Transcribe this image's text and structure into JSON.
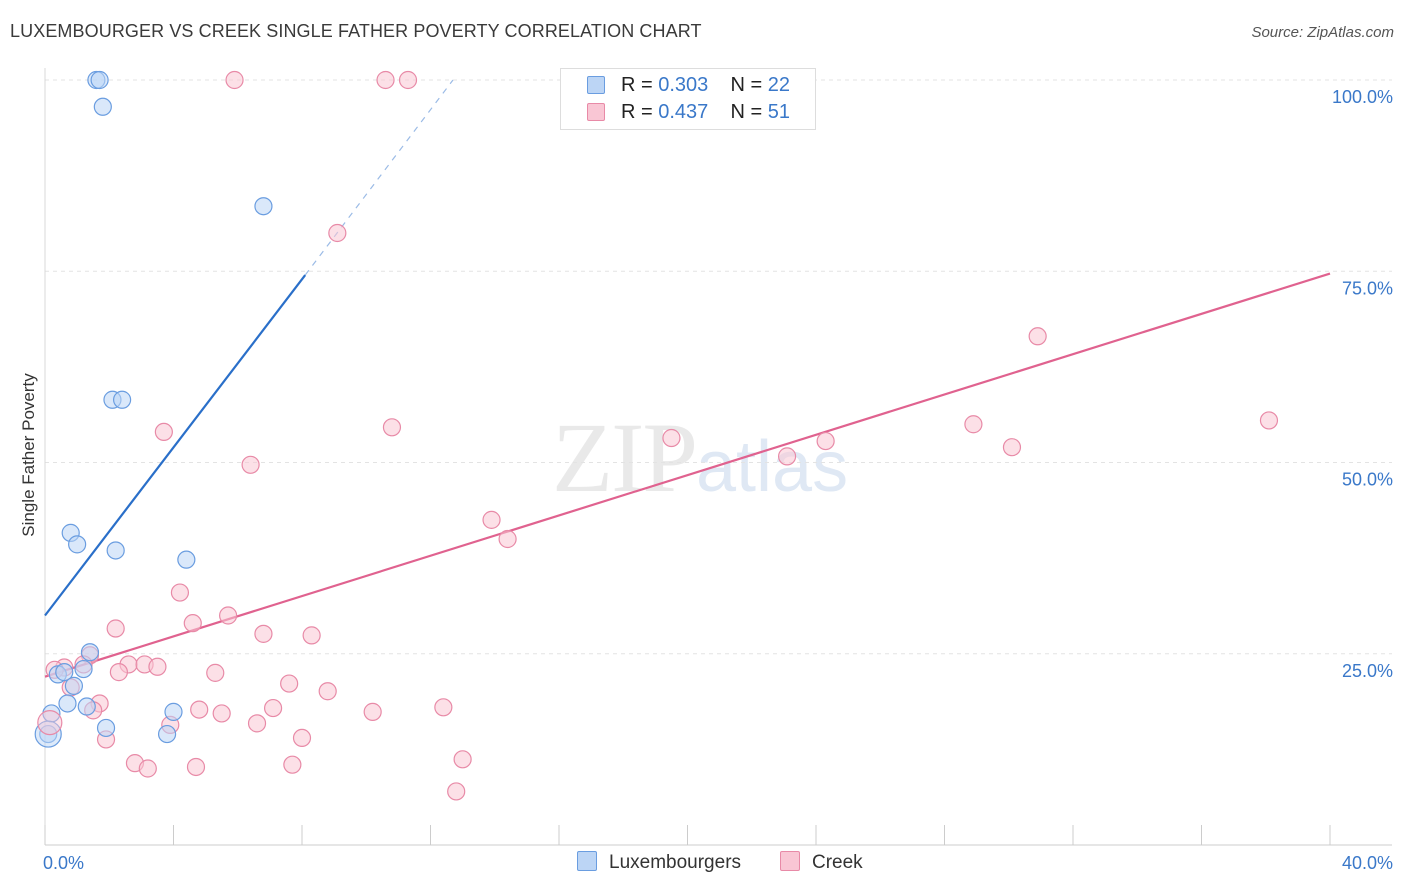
{
  "title": "LUXEMBOURGER VS CREEK SINGLE FATHER POVERTY CORRELATION CHART",
  "source": "Source: ZipAtlas.com",
  "watermark": {
    "zip": "ZIP",
    "atlas": "atlas"
  },
  "colors": {
    "blue_fill": "#bcd5f5",
    "blue_stroke": "#6a9de0",
    "blue_line": "#2a6fc9",
    "pink_fill": "#f9c6d4",
    "pink_stroke": "#e88aa7",
    "pink_line": "#e0628f",
    "grid": "#e3e3e3",
    "axis_text": "#3a78c9"
  },
  "legend": {
    "rows": [
      {
        "r_label": "R = ",
        "r_value": "0.303",
        "n_label": "N = ",
        "n_value": "22"
      },
      {
        "r_label": "R = ",
        "r_value": "0.437",
        "n_label": "N = ",
        "n_value": "51"
      }
    ]
  },
  "bottom_legend": {
    "blue": "Luxembourgers",
    "pink": "Creek"
  },
  "chart_data": {
    "type": "scatter",
    "title": "LUXEMBOURGER VS CREEK SINGLE FATHER POVERTY CORRELATION CHART",
    "xlabel": "",
    "ylabel": "Single Father Poverty",
    "xlim": [
      0,
      40
    ],
    "ylim": [
      0,
      100
    ],
    "x_tick_labels": [
      "0.0%",
      "40.0%"
    ],
    "y_tick_labels": [
      "25.0%",
      "50.0%",
      "75.0%",
      "100.0%"
    ],
    "y_ticks": [
      25,
      50,
      75,
      100
    ],
    "series": [
      {
        "name": "Luxembourgers",
        "color": "blue",
        "points": [
          [
            1.6,
            100
          ],
          [
            1.7,
            100
          ],
          [
            1.8,
            96.5
          ],
          [
            6.8,
            83.5
          ],
          [
            2.1,
            58.2
          ],
          [
            2.4,
            58.2
          ],
          [
            0.8,
            40.8
          ],
          [
            1.0,
            39.3
          ],
          [
            2.2,
            38.5
          ],
          [
            4.4,
            37.3
          ],
          [
            1.4,
            25.2
          ],
          [
            1.2,
            23.0
          ],
          [
            0.4,
            22.3
          ],
          [
            0.6,
            22.6
          ],
          [
            0.9,
            20.8
          ],
          [
            0.7,
            18.5
          ],
          [
            1.3,
            18.1
          ],
          [
            0.2,
            17.2
          ],
          [
            1.9,
            15.3
          ],
          [
            4.0,
            17.4
          ],
          [
            3.8,
            14.5
          ],
          [
            0.1,
            14.5
          ]
        ],
        "trend": {
          "x0": 0.0,
          "y0": 30.0,
          "x1": 8.1,
          "y1": 74.5,
          "dash_x1": 12.7,
          "dash_y1": 100
        }
      },
      {
        "name": "Creek",
        "color": "pink",
        "points": [
          [
            5.9,
            100
          ],
          [
            10.6,
            100
          ],
          [
            11.3,
            100
          ],
          [
            9.1,
            80.0
          ],
          [
            30.9,
            66.5
          ],
          [
            38.1,
            55.5
          ],
          [
            3.7,
            54.0
          ],
          [
            10.8,
            54.6
          ],
          [
            23.1,
            50.8
          ],
          [
            24.3,
            52.8
          ],
          [
            19.5,
            53.2
          ],
          [
            28.9,
            55.0
          ],
          [
            30.1,
            52.0
          ],
          [
            6.4,
            49.7
          ],
          [
            13.9,
            42.5
          ],
          [
            14.4,
            40.0
          ],
          [
            4.2,
            33.0
          ],
          [
            5.7,
            30.0
          ],
          [
            4.6,
            29.0
          ],
          [
            2.2,
            28.3
          ],
          [
            6.8,
            27.6
          ],
          [
            8.3,
            27.4
          ],
          [
            1.4,
            24.8
          ],
          [
            0.6,
            23.2
          ],
          [
            1.2,
            23.6
          ],
          [
            2.6,
            23.6
          ],
          [
            2.3,
            22.6
          ],
          [
            3.1,
            23.6
          ],
          [
            3.5,
            23.3
          ],
          [
            0.3,
            22.9
          ],
          [
            0.8,
            20.6
          ],
          [
            5.3,
            22.5
          ],
          [
            7.6,
            21.1
          ],
          [
            8.8,
            20.1
          ],
          [
            1.7,
            18.5
          ],
          [
            1.5,
            17.6
          ],
          [
            7.1,
            17.9
          ],
          [
            5.5,
            17.2
          ],
          [
            4.8,
            17.7
          ],
          [
            10.2,
            17.4
          ],
          [
            12.4,
            18.0
          ],
          [
            3.9,
            15.7
          ],
          [
            6.6,
            15.9
          ],
          [
            1.9,
            13.8
          ],
          [
            8.0,
            14.0
          ],
          [
            2.8,
            10.7
          ],
          [
            3.2,
            10.0
          ],
          [
            4.7,
            10.2
          ],
          [
            7.7,
            10.5
          ],
          [
            13.0,
            11.2
          ],
          [
            12.8,
            7.0
          ]
        ],
        "trend": {
          "x0": 0.0,
          "y0": 22.0,
          "x1": 40.0,
          "y1": 74.7
        }
      }
    ]
  }
}
